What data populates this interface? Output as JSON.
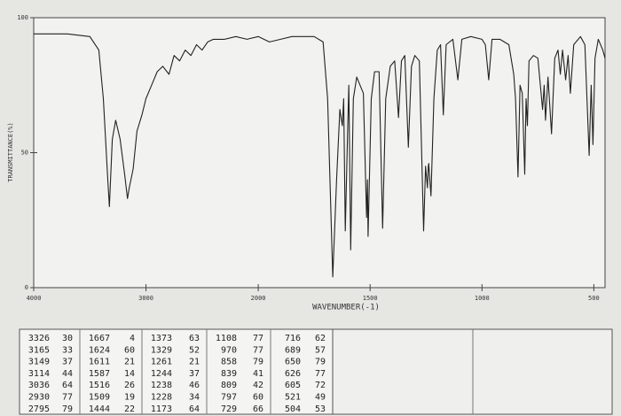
{
  "chart_data": {
    "type": "line",
    "x_label": "WAVENUMBER(-1)",
    "y_label": "TRANSMITTANCE(%)",
    "xlim": [
      4000,
      450
    ],
    "xbreak": 2000,
    "xticks": [
      4000,
      3000,
      2000,
      1500,
      1000,
      500
    ],
    "ylim": [
      0,
      100
    ],
    "yticks": [
      0,
      50,
      100
    ],
    "color": "#222222",
    "x": [
      4000,
      3700,
      3500,
      3420,
      3380,
      3340,
      3326,
      3300,
      3270,
      3230,
      3190,
      3165,
      3149,
      3114,
      3080,
      3036,
      3000,
      2960,
      2930,
      2900,
      2850,
      2795,
      2750,
      2700,
      2650,
      2600,
      2550,
      2500,
      2450,
      2400,
      2300,
      2200,
      2100,
      2000,
      1950,
      1900,
      1850,
      1750,
      1710,
      1690,
      1667,
      1650,
      1635,
      1624,
      1618,
      1611,
      1600,
      1595,
      1587,
      1575,
      1560,
      1530,
      1516,
      1512,
      1509,
      1495,
      1480,
      1460,
      1444,
      1430,
      1410,
      1390,
      1373,
      1360,
      1345,
      1329,
      1315,
      1300,
      1280,
      1261,
      1252,
      1244,
      1240,
      1238,
      1233,
      1228,
      1215,
      1200,
      1185,
      1173,
      1160,
      1130,
      1108,
      1090,
      1050,
      1000,
      985,
      970,
      955,
      920,
      880,
      858,
      850,
      839,
      830,
      820,
      809,
      803,
      797,
      790,
      770,
      750,
      729,
      722,
      716,
      705,
      689,
      675,
      660,
      650,
      640,
      626,
      615,
      605,
      590,
      560,
      540,
      521,
      512,
      504,
      495,
      480,
      460,
      450
    ],
    "values": [
      94,
      94,
      93,
      88,
      70,
      40,
      30,
      55,
      62,
      55,
      42,
      33,
      37,
      44,
      58,
      64,
      70,
      74,
      77,
      80,
      82,
      79,
      86,
      84,
      88,
      86,
      90,
      88,
      91,
      92,
      92,
      93,
      92,
      93,
      91,
      92,
      93,
      93,
      91,
      70,
      4,
      40,
      66,
      60,
      70,
      21,
      60,
      75,
      14,
      70,
      78,
      72,
      26,
      40,
      19,
      70,
      80,
      80,
      22,
      70,
      82,
      84,
      63,
      84,
      86,
      52,
      82,
      86,
      84,
      21,
      45,
      37,
      45,
      46,
      40,
      34,
      70,
      88,
      90,
      64,
      90,
      92,
      77,
      92,
      93,
      92,
      90,
      77,
      92,
      92,
      90,
      79,
      70,
      41,
      75,
      72,
      42,
      70,
      60,
      84,
      86,
      85,
      66,
      75,
      62,
      78,
      57,
      85,
      88,
      79,
      88,
      77,
      86,
      72,
      90,
      93,
      90,
      49,
      75,
      53,
      85,
      92,
      88,
      85
    ],
    "peak_table": [
      [
        [
          3326,
          30
        ],
        [
          3165,
          33
        ],
        [
          3149,
          37
        ],
        [
          3114,
          44
        ],
        [
          3036,
          64
        ],
        [
          2930,
          77
        ],
        [
          2795,
          79
        ]
      ],
      [
        [
          1667,
          4
        ],
        [
          1624,
          60
        ],
        [
          1611,
          21
        ],
        [
          1587,
          14
        ],
        [
          1516,
          26
        ],
        [
          1509,
          19
        ],
        [
          1444,
          22
        ]
      ],
      [
        [
          1373,
          63
        ],
        [
          1329,
          52
        ],
        [
          1261,
          21
        ],
        [
          1244,
          37
        ],
        [
          1238,
          46
        ],
        [
          1228,
          34
        ],
        [
          1173,
          64
        ]
      ],
      [
        [
          1108,
          77
        ],
        [
          970,
          77
        ],
        [
          858,
          79
        ],
        [
          839,
          41
        ],
        [
          809,
          42
        ],
        [
          797,
          60
        ],
        [
          729,
          66
        ]
      ],
      [
        [
          716,
          62
        ],
        [
          689,
          57
        ],
        [
          650,
          79
        ],
        [
          626,
          77
        ],
        [
          605,
          72
        ],
        [
          521,
          49
        ],
        [
          504,
          53
        ]
      ]
    ]
  }
}
